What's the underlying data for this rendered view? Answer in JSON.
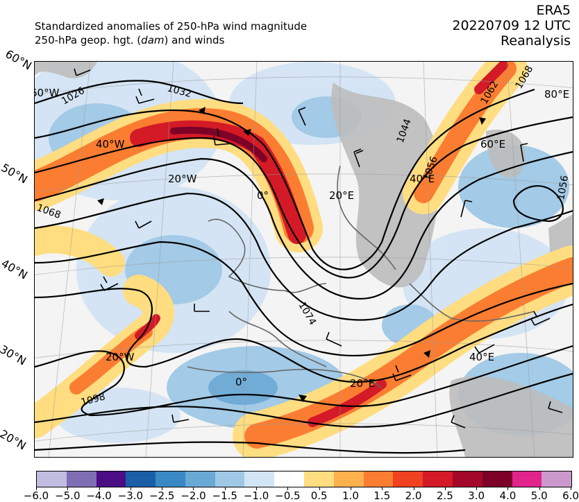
{
  "header": {
    "line1": "Standardized anomalies of 250-hPa wind magnitude",
    "line2_pre": "250-hPa geop. hgt. (",
    "line2_unit": "dam",
    "line2_post": ") and winds",
    "source": "ERA5",
    "datetime": "20220709 12 UTC",
    "product": "Reanalysis"
  },
  "lat_labels": [
    "60°N",
    "50°N",
    "40°N",
    "30°N",
    "20°N"
  ],
  "grid_labels": [
    "60°W",
    "40°W",
    "20°W",
    "0°",
    "20°E",
    "40°E",
    "60°E",
    "80°E",
    "20°W",
    "0°",
    "20°E",
    "40°E"
  ],
  "contour_labels": [
    "1026",
    "1032",
    "1068",
    "1044",
    "1056",
    "1062",
    "1068",
    "1056",
    "1074",
    "1098"
  ],
  "colorbar": {
    "colors": [
      "#c0bde0",
      "#7f6eb4",
      "#4a0d86",
      "#1a5ea8",
      "#3a88c4",
      "#6aa9d6",
      "#9fc8e6",
      "#d3e4f4",
      "#ffffff",
      "#ffdd80",
      "#ffb14e",
      "#fb7d32",
      "#f04121",
      "#d31a26",
      "#a30729",
      "#7d0028",
      "#e0248c",
      "#cc99cc"
    ],
    "labels": [
      "−6.0",
      "−5.0",
      "−4.0",
      "−3.0",
      "−2.5",
      "−2.0",
      "−1.5",
      "−1.0",
      "−0.5",
      "0.5",
      "1.0",
      "1.5",
      "2.0",
      "2.5",
      "3.0",
      "4.0",
      "5.0",
      "6.0"
    ]
  }
}
